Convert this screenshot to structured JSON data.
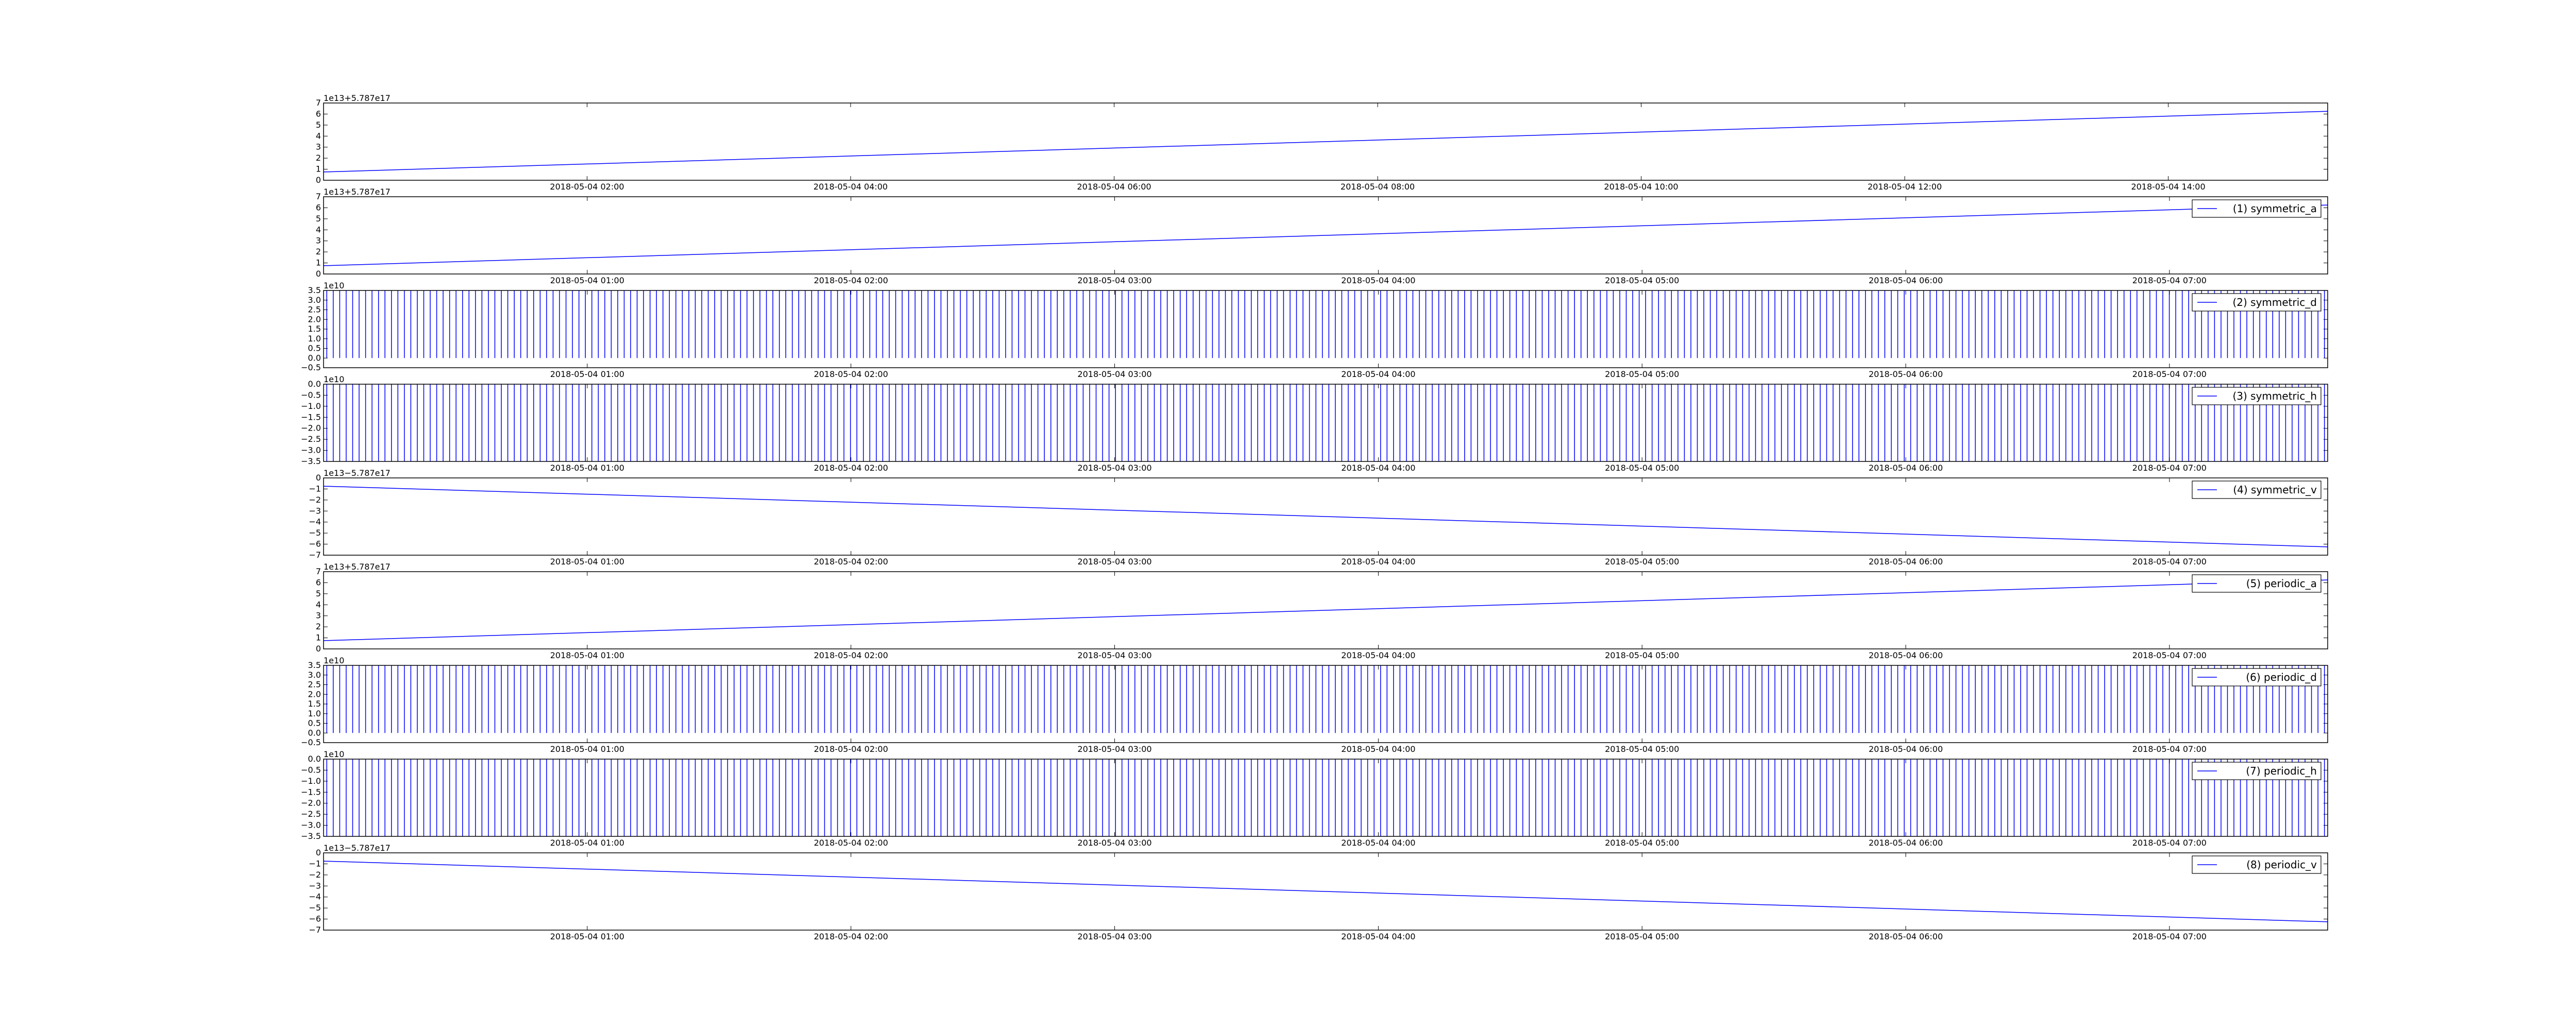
{
  "chart_data": [
    {
      "type": "line",
      "panel": 0,
      "offset_text": "1e13+5.787e17",
      "legend": "",
      "ylim": [
        0,
        7
      ],
      "yticks": [
        "0",
        "1",
        "2",
        "3",
        "4",
        "5",
        "6",
        "7"
      ],
      "xlim": [
        0,
        15.21
      ],
      "xticks": [
        {
          "x": 2,
          "label": "2018-05-04 02:00"
        },
        {
          "x": 4,
          "label": "2018-05-04 04:00"
        },
        {
          "x": 6,
          "label": "2018-05-04 06:00"
        },
        {
          "x": 8,
          "label": "2018-05-04 08:00"
        },
        {
          "x": 10,
          "label": "2018-05-04 10:00"
        },
        {
          "x": 12,
          "label": "2018-05-04 12:00"
        },
        {
          "x": 14,
          "label": "2018-05-04 14:00"
        }
      ],
      "style": "linear",
      "x": [
        0,
        15.21
      ],
      "y": [
        0.75,
        6.25
      ]
    },
    {
      "type": "line",
      "panel": 1,
      "offset_text": "1e13+5.787e17",
      "legend": "(1) symmetric_a",
      "ylim": [
        0,
        7
      ],
      "yticks": [
        "0",
        "1",
        "2",
        "3",
        "4",
        "5",
        "6",
        "7"
      ],
      "xlim": [
        0,
        7.6
      ],
      "xticks": [
        {
          "x": 1,
          "label": "2018-05-04 01:00"
        },
        {
          "x": 2,
          "label": "2018-05-04 02:00"
        },
        {
          "x": 3,
          "label": "2018-05-04 03:00"
        },
        {
          "x": 4,
          "label": "2018-05-04 04:00"
        },
        {
          "x": 5,
          "label": "2018-05-04 05:00"
        },
        {
          "x": 6,
          "label": "2018-05-04 06:00"
        },
        {
          "x": 7,
          "label": "2018-05-04 07:00"
        }
      ],
      "style": "linear",
      "x": [
        0,
        7.6
      ],
      "y": [
        0.75,
        6.25
      ]
    },
    {
      "type": "line",
      "panel": 2,
      "offset_text": "1e10",
      "legend": "(2) symmetric_d",
      "ylim": [
        -0.5,
        3.5
      ],
      "yticks": [
        "−0.5",
        "0.0",
        "0.5",
        "1.0",
        "1.5",
        "2.0",
        "2.5",
        "3.0",
        "3.5"
      ],
      "xlim": [
        0,
        7.6
      ],
      "xticks": [
        {
          "x": 1,
          "label": "2018-05-04 01:00"
        },
        {
          "x": 2,
          "label": "2018-05-04 02:00"
        },
        {
          "x": 3,
          "label": "2018-05-04 03:00"
        },
        {
          "x": 4,
          "label": "2018-05-04 04:00"
        },
        {
          "x": 5,
          "label": "2018-05-04 05:00"
        },
        {
          "x": 6,
          "label": "2018-05-04 06:00"
        },
        {
          "x": 7,
          "label": "2018-05-04 07:00"
        }
      ],
      "style": "spikes",
      "spike_count": 310,
      "base": 0,
      "peak": 3.5
    },
    {
      "type": "line",
      "panel": 3,
      "offset_text": "1e10",
      "legend": "(3) symmetric_h",
      "ylim": [
        -3.5,
        0
      ],
      "yticks": [
        "−3.5",
        "−3.0",
        "−2.5",
        "−2.0",
        "−1.5",
        "−1.0",
        "−0.5",
        "0.0"
      ],
      "xlim": [
        0,
        7.6
      ],
      "xticks": [
        {
          "x": 1,
          "label": "2018-05-04 01:00"
        },
        {
          "x": 2,
          "label": "2018-05-04 02:00"
        },
        {
          "x": 3,
          "label": "2018-05-04 03:00"
        },
        {
          "x": 4,
          "label": "2018-05-04 04:00"
        },
        {
          "x": 5,
          "label": "2018-05-04 05:00"
        },
        {
          "x": 6,
          "label": "2018-05-04 06:00"
        },
        {
          "x": 7,
          "label": "2018-05-04 07:00"
        }
      ],
      "style": "spikes",
      "spike_count": 310,
      "base": 0,
      "peak": -3.5
    },
    {
      "type": "line",
      "panel": 4,
      "offset_text": "1e13−5.787e17",
      "legend": "(4) symmetric_v",
      "ylim": [
        -7,
        0
      ],
      "yticks": [
        "−7",
        "−6",
        "−5",
        "−4",
        "−3",
        "−2",
        "−1",
        "0"
      ],
      "xlim": [
        0,
        7.6
      ],
      "xticks": [
        {
          "x": 1,
          "label": "2018-05-04 01:00"
        },
        {
          "x": 2,
          "label": "2018-05-04 02:00"
        },
        {
          "x": 3,
          "label": "2018-05-04 03:00"
        },
        {
          "x": 4,
          "label": "2018-05-04 04:00"
        },
        {
          "x": 5,
          "label": "2018-05-04 05:00"
        },
        {
          "x": 6,
          "label": "2018-05-04 06:00"
        },
        {
          "x": 7,
          "label": "2018-05-04 07:00"
        }
      ],
      "style": "linear",
      "x": [
        0,
        7.6
      ],
      "y": [
        -0.75,
        -6.25
      ]
    },
    {
      "type": "line",
      "panel": 5,
      "offset_text": "1e13+5.787e17",
      "legend": "(5) periodic_a",
      "ylim": [
        0,
        7
      ],
      "yticks": [
        "0",
        "1",
        "2",
        "3",
        "4",
        "5",
        "6",
        "7"
      ],
      "xlim": [
        0,
        7.6
      ],
      "xticks": [
        {
          "x": 1,
          "label": "2018-05-04 01:00"
        },
        {
          "x": 2,
          "label": "2018-05-04 02:00"
        },
        {
          "x": 3,
          "label": "2018-05-04 03:00"
        },
        {
          "x": 4,
          "label": "2018-05-04 04:00"
        },
        {
          "x": 5,
          "label": "2018-05-04 05:00"
        },
        {
          "x": 6,
          "label": "2018-05-04 06:00"
        },
        {
          "x": 7,
          "label": "2018-05-04 07:00"
        }
      ],
      "style": "linear",
      "x": [
        0,
        7.6
      ],
      "y": [
        0.75,
        6.25
      ]
    },
    {
      "type": "line",
      "panel": 6,
      "offset_text": "1e10",
      "legend": "(6) periodic_d",
      "ylim": [
        -0.5,
        3.5
      ],
      "yticks": [
        "−0.5",
        "0.0",
        "0.5",
        "1.0",
        "1.5",
        "2.0",
        "2.5",
        "3.0",
        "3.5"
      ],
      "xlim": [
        0,
        7.6
      ],
      "xticks": [
        {
          "x": 1,
          "label": "2018-05-04 01:00"
        },
        {
          "x": 2,
          "label": "2018-05-04 02:00"
        },
        {
          "x": 3,
          "label": "2018-05-04 03:00"
        },
        {
          "x": 4,
          "label": "2018-05-04 04:00"
        },
        {
          "x": 5,
          "label": "2018-05-04 05:00"
        },
        {
          "x": 6,
          "label": "2018-05-04 06:00"
        },
        {
          "x": 7,
          "label": "2018-05-04 07:00"
        }
      ],
      "style": "spikes",
      "spike_count": 310,
      "base": 0,
      "peak": 3.5
    },
    {
      "type": "line",
      "panel": 7,
      "offset_text": "1e10",
      "legend": "(7) periodic_h",
      "ylim": [
        -3.5,
        0
      ],
      "yticks": [
        "−3.5",
        "−3.0",
        "−2.5",
        "−2.0",
        "−1.5",
        "−1.0",
        "−0.5",
        "0.0"
      ],
      "xlim": [
        0,
        7.6
      ],
      "xticks": [
        {
          "x": 1,
          "label": "2018-05-04 01:00"
        },
        {
          "x": 2,
          "label": "2018-05-04 02:00"
        },
        {
          "x": 3,
          "label": "2018-05-04 03:00"
        },
        {
          "x": 4,
          "label": "2018-05-04 04:00"
        },
        {
          "x": 5,
          "label": "2018-05-04 05:00"
        },
        {
          "x": 6,
          "label": "2018-05-04 06:00"
        },
        {
          "x": 7,
          "label": "2018-05-04 07:00"
        }
      ],
      "style": "spikes",
      "spike_count": 310,
      "base": 0,
      "peak": -3.5
    },
    {
      "type": "line",
      "panel": 8,
      "offset_text": "1e13−5.787e17",
      "legend": "(8) periodic_v",
      "ylim": [
        -7,
        0
      ],
      "yticks": [
        "−7",
        "−6",
        "−5",
        "−4",
        "−3",
        "−2",
        "−1",
        "0"
      ],
      "xlim": [
        0,
        7.6
      ],
      "xticks": [
        {
          "x": 1,
          "label": "2018-05-04 01:00"
        },
        {
          "x": 2,
          "label": "2018-05-04 02:00"
        },
        {
          "x": 3,
          "label": "2018-05-04 03:00"
        },
        {
          "x": 4,
          "label": "2018-05-04 04:00"
        },
        {
          "x": 5,
          "label": "2018-05-04 05:00"
        },
        {
          "x": 6,
          "label": "2018-05-04 06:00"
        },
        {
          "x": 7,
          "label": "2018-05-04 07:00"
        }
      ],
      "style": "linear",
      "x": [
        0,
        7.6
      ],
      "y": [
        -0.75,
        -6.25
      ]
    }
  ],
  "colors": {
    "series": "#0000ff",
    "axes": "#000000",
    "background": "#ffffff"
  }
}
